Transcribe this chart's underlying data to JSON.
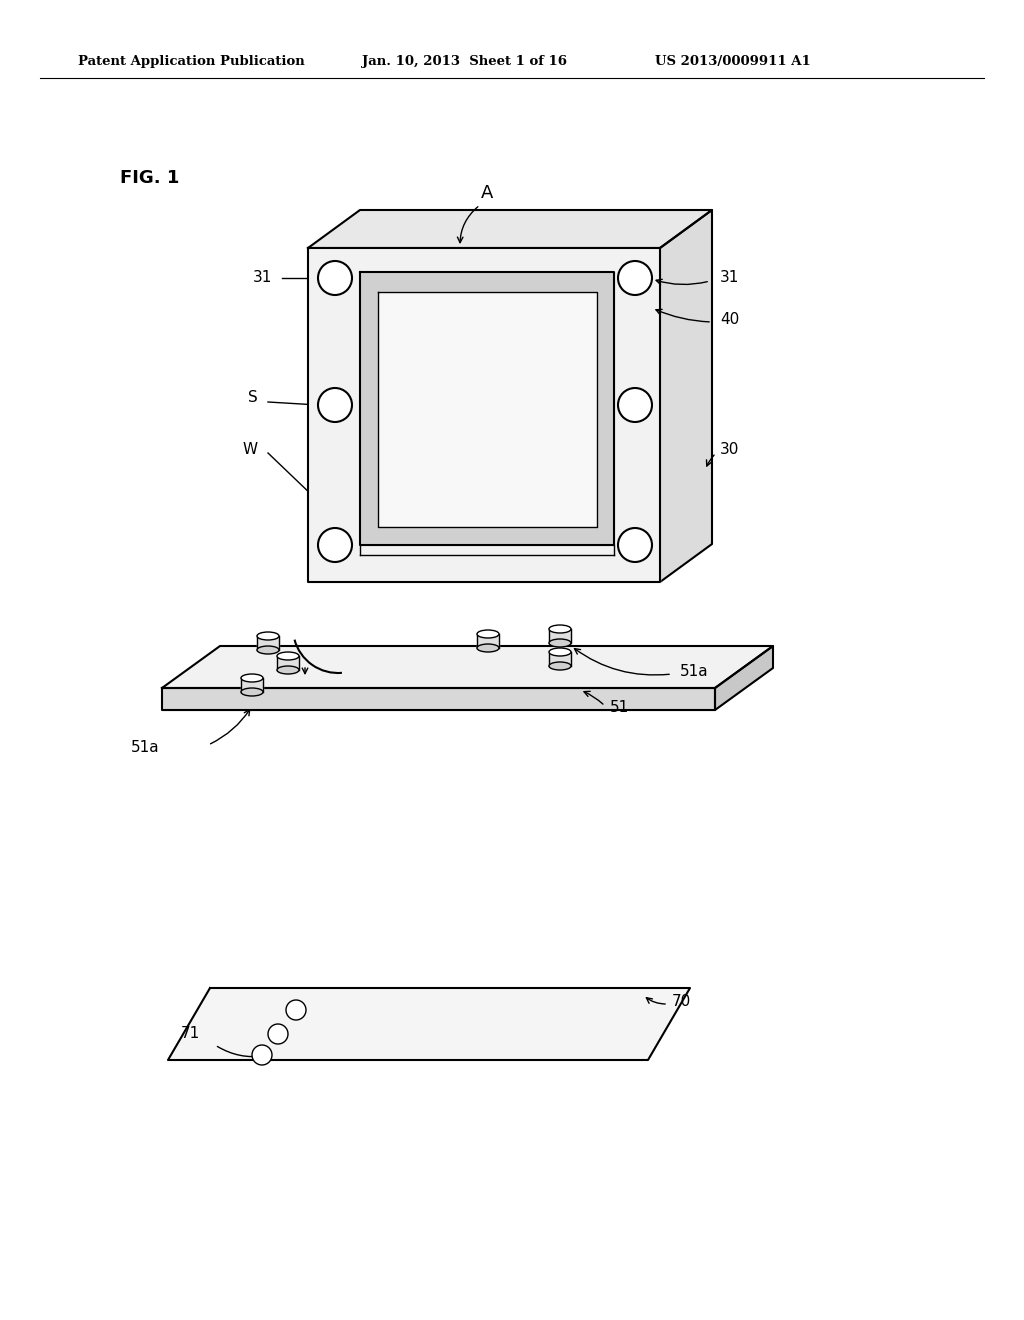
{
  "bg_color": "#ffffff",
  "header_text": "Patent Application Publication",
  "header_date": "Jan. 10, 2013  Sheet 1 of 16",
  "header_patent": "US 2013/0009911 A1",
  "fig_label": "FIG. 1",
  "label_A": "A",
  "label_31_left": "31",
  "label_31_right": "31",
  "label_40": "40",
  "label_S": "S",
  "label_W": "W",
  "label_30": "30",
  "label_51a_left": "51a",
  "label_51a_right": "51a",
  "label_51": "51",
  "label_71": "71",
  "label_70": "70",
  "line_color": "#000000",
  "face_front": "#f2f2f2",
  "face_top": "#e8e8e8",
  "face_right": "#dcdcdc",
  "face_base_top": "#f2f2f2",
  "face_base_side": "#d8d8d8",
  "face_board": "#f5f5f5",
  "face_window_frame": "#d0d0d0",
  "face_window_inner": "#f8f8f8"
}
